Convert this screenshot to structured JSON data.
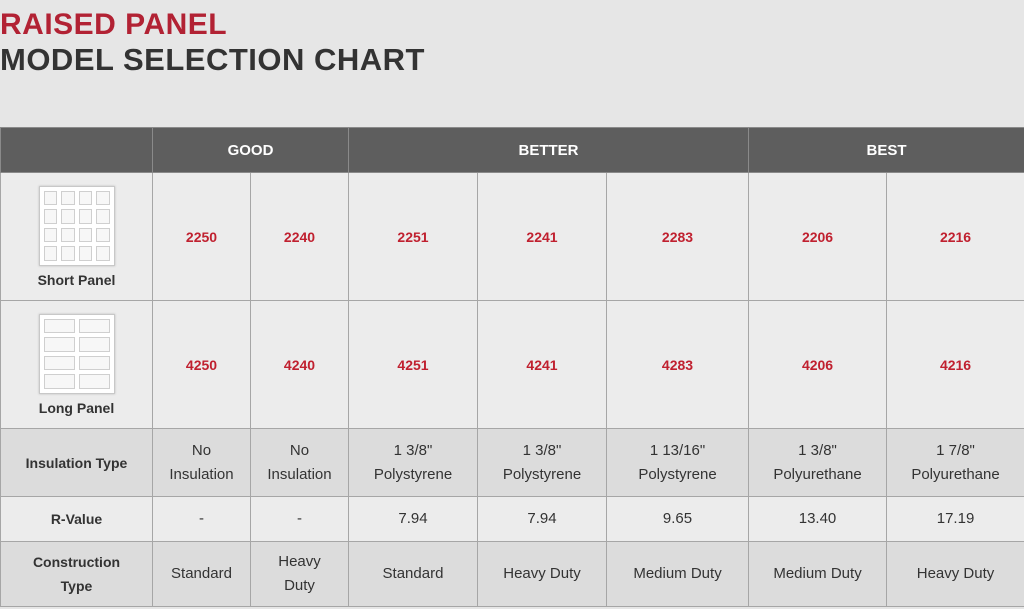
{
  "title": {
    "line1": "RAISED PANEL",
    "line2": "MODEL SELECTION CHART"
  },
  "tiers": {
    "good": "GOOD",
    "better": "BETTER",
    "best": "BEST"
  },
  "panels": {
    "short": {
      "label": "Short Panel",
      "models": [
        "2250",
        "2240",
        "2251",
        "2241",
        "2283",
        "2206",
        "2216"
      ]
    },
    "long": {
      "label": "Long Panel",
      "models": [
        "4250",
        "4240",
        "4251",
        "4241",
        "4283",
        "4206",
        "4216"
      ]
    }
  },
  "insulation": {
    "label": "Insulation Type",
    "values": [
      [
        "No",
        "Insulation"
      ],
      [
        "No",
        "Insulation"
      ],
      [
        "1 3/8\"",
        "Polystyrene"
      ],
      [
        "1 3/8\"",
        "Polystyrene"
      ],
      [
        "1 13/16\"",
        "Polystyrene"
      ],
      [
        "1 3/8\"",
        "Polyurethane"
      ],
      [
        "1 7/8\"",
        "Polyurethane"
      ]
    ]
  },
  "rvalue": {
    "label": "R-Value",
    "values": [
      "-",
      "-",
      "7.94",
      "7.94",
      "9.65",
      "13.40",
      "17.19"
    ]
  },
  "construction": {
    "label": [
      "Construction",
      "Type"
    ],
    "values": [
      [
        "Standard"
      ],
      [
        "Heavy",
        "Duty"
      ],
      [
        "Standard"
      ],
      [
        "Heavy Duty"
      ],
      [
        "Medium Duty"
      ],
      [
        "Medium Duty"
      ],
      [
        "Heavy Duty"
      ]
    ]
  }
}
